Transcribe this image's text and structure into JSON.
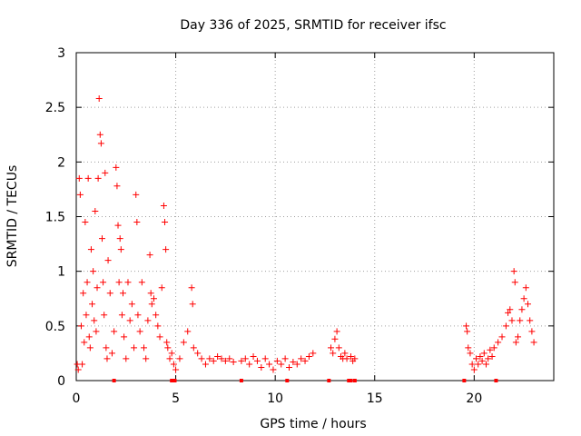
{
  "chart_data": {
    "type": "scatter",
    "title": "Day 336 of 2025, SRMTID for receiver ifsc",
    "xlabel": "GPS time / hours",
    "ylabel": "SRMTID / TECUs",
    "xlim": [
      0,
      24
    ],
    "ylim": [
      0,
      3
    ],
    "xticks": [
      0,
      5,
      10,
      15,
      20
    ],
    "yticks": [
      0,
      0.5,
      1,
      1.5,
      2,
      2.5,
      3
    ],
    "ytick_labels": [
      "0",
      "0.5",
      "1",
      "1.5",
      "2",
      "2.5",
      "3"
    ],
    "grid": true,
    "marker": "+",
    "color": "#ff0000",
    "series": [
      {
        "name": "SRMTID",
        "points": [
          [
            0.05,
            0.15
          ],
          [
            0.1,
            0.1
          ],
          [
            0.15,
            1.85
          ],
          [
            0.2,
            1.7
          ],
          [
            0.25,
            0.5
          ],
          [
            0.3,
            0.15
          ],
          [
            0.35,
            0.8
          ],
          [
            0.4,
            0.35
          ],
          [
            0.45,
            1.45
          ],
          [
            0.5,
            0.6
          ],
          [
            0.55,
            0.9
          ],
          [
            0.6,
            1.85
          ],
          [
            0.65,
            0.4
          ],
          [
            0.7,
            0.3
          ],
          [
            0.75,
            1.2
          ],
          [
            0.8,
            0.7
          ],
          [
            0.85,
            1.0
          ],
          [
            0.9,
            0.55
          ],
          [
            0.95,
            1.55
          ],
          [
            1.0,
            0.45
          ],
          [
            1.05,
            0.85
          ],
          [
            1.1,
            1.85
          ],
          [
            1.15,
            2.58
          ],
          [
            1.2,
            2.25
          ],
          [
            1.25,
            2.17
          ],
          [
            1.3,
            1.3
          ],
          [
            1.35,
            0.9
          ],
          [
            1.4,
            0.6
          ],
          [
            1.45,
            1.9
          ],
          [
            1.5,
            0.3
          ],
          [
            1.55,
            0.2
          ],
          [
            1.6,
            1.1
          ],
          [
            1.7,
            0.8
          ],
          [
            1.8,
            0.25
          ],
          [
            1.9,
            0.45
          ],
          [
            2.0,
            1.95
          ],
          [
            2.05,
            1.78
          ],
          [
            2.1,
            1.42
          ],
          [
            2.15,
            0.9
          ],
          [
            2.2,
            1.3
          ],
          [
            2.25,
            1.2
          ],
          [
            2.3,
            0.6
          ],
          [
            2.35,
            0.8
          ],
          [
            2.4,
            0.4
          ],
          [
            2.5,
            0.2
          ],
          [
            2.6,
            0.9
          ],
          [
            2.7,
            0.55
          ],
          [
            2.8,
            0.7
          ],
          [
            2.9,
            0.3
          ],
          [
            3.0,
            1.7
          ],
          [
            3.05,
            1.45
          ],
          [
            3.1,
            0.6
          ],
          [
            3.2,
            0.45
          ],
          [
            3.3,
            0.9
          ],
          [
            3.4,
            0.3
          ],
          [
            3.5,
            0.2
          ],
          [
            3.6,
            0.55
          ],
          [
            3.7,
            1.15
          ],
          [
            3.75,
            0.8
          ],
          [
            3.8,
            0.7
          ],
          [
            3.9,
            0.75
          ],
          [
            4.0,
            0.6
          ],
          [
            4.1,
            0.5
          ],
          [
            4.2,
            0.4
          ],
          [
            4.3,
            0.85
          ],
          [
            4.4,
            1.6
          ],
          [
            4.45,
            1.45
          ],
          [
            4.5,
            1.2
          ],
          [
            4.55,
            0.35
          ],
          [
            4.6,
            0.3
          ],
          [
            4.7,
            0.2
          ],
          [
            4.8,
            0.25
          ],
          [
            4.9,
            0.15
          ],
          [
            5.0,
            0.1
          ],
          [
            5.2,
            0.2
          ],
          [
            5.4,
            0.35
          ],
          [
            5.6,
            0.45
          ],
          [
            5.8,
            0.85
          ],
          [
            5.85,
            0.7
          ],
          [
            5.9,
            0.3
          ],
          [
            6.1,
            0.25
          ],
          [
            6.3,
            0.2
          ],
          [
            6.5,
            0.15
          ],
          [
            6.7,
            0.2
          ],
          [
            6.9,
            0.18
          ],
          [
            7.1,
            0.22
          ],
          [
            7.3,
            0.2
          ],
          [
            7.5,
            0.18
          ],
          [
            7.7,
            0.2
          ],
          [
            7.9,
            0.17
          ],
          [
            8.3,
            0.18
          ],
          [
            8.5,
            0.2
          ],
          [
            8.7,
            0.15
          ],
          [
            8.9,
            0.22
          ],
          [
            9.1,
            0.18
          ],
          [
            9.3,
            0.12
          ],
          [
            9.5,
            0.2
          ],
          [
            9.7,
            0.15
          ],
          [
            9.9,
            0.1
          ],
          [
            10.1,
            0.18
          ],
          [
            10.3,
            0.15
          ],
          [
            10.5,
            0.2
          ],
          [
            10.7,
            0.12
          ],
          [
            10.9,
            0.17
          ],
          [
            11.1,
            0.15
          ],
          [
            11.3,
            0.2
          ],
          [
            11.5,
            0.18
          ],
          [
            11.7,
            0.22
          ],
          [
            11.9,
            0.25
          ],
          [
            12.8,
            0.3
          ],
          [
            12.9,
            0.25
          ],
          [
            13.0,
            0.38
          ],
          [
            13.1,
            0.45
          ],
          [
            13.2,
            0.3
          ],
          [
            13.3,
            0.22
          ],
          [
            13.4,
            0.2
          ],
          [
            13.5,
            0.25
          ],
          [
            13.6,
            0.2
          ],
          [
            13.8,
            0.22
          ],
          [
            13.9,
            0.18
          ],
          [
            14.0,
            0.2
          ],
          [
            19.6,
            0.5
          ],
          [
            19.65,
            0.45
          ],
          [
            19.7,
            0.3
          ],
          [
            19.8,
            0.25
          ],
          [
            19.9,
            0.15
          ],
          [
            20.0,
            0.1
          ],
          [
            20.1,
            0.2
          ],
          [
            20.2,
            0.15
          ],
          [
            20.3,
            0.22
          ],
          [
            20.4,
            0.18
          ],
          [
            20.5,
            0.25
          ],
          [
            20.6,
            0.15
          ],
          [
            20.7,
            0.2
          ],
          [
            20.8,
            0.28
          ],
          [
            20.9,
            0.22
          ],
          [
            21.0,
            0.3
          ],
          [
            21.2,
            0.35
          ],
          [
            21.4,
            0.4
          ],
          [
            21.6,
            0.5
          ],
          [
            21.7,
            0.62
          ],
          [
            21.8,
            0.65
          ],
          [
            21.9,
            0.55
          ],
          [
            22.0,
            1.0
          ],
          [
            22.05,
            0.9
          ],
          [
            22.1,
            0.35
          ],
          [
            22.2,
            0.4
          ],
          [
            22.3,
            0.55
          ],
          [
            22.4,
            0.65
          ],
          [
            22.5,
            0.75
          ],
          [
            22.6,
            0.85
          ],
          [
            22.7,
            0.7
          ],
          [
            22.8,
            0.55
          ],
          [
            22.9,
            0.45
          ],
          [
            23.0,
            0.35
          ]
        ]
      }
    ],
    "zero_markers": [
      1.9,
      4.8,
      4.95,
      8.3,
      10.6,
      12.7,
      13.7,
      13.8,
      14.0,
      19.5,
      21.1
    ]
  }
}
